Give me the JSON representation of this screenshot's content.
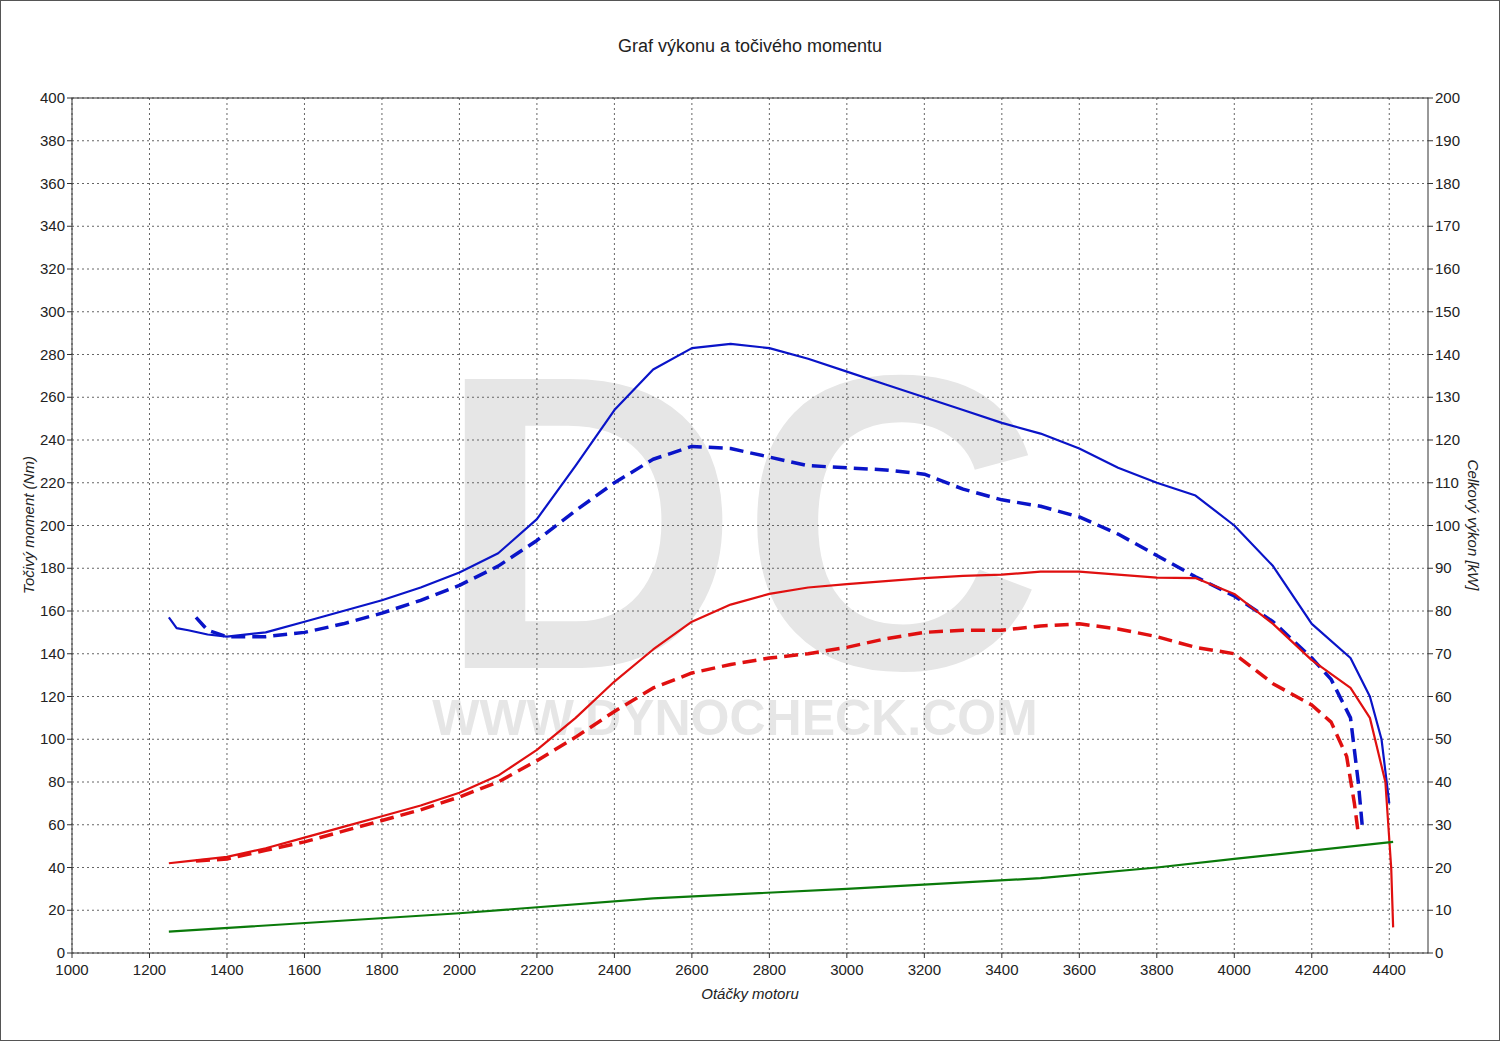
{
  "chart_data": {
    "type": "line",
    "title": "Graf výkonu a točivého momentu",
    "x_label": "Otáčky motoru",
    "y_label": "Točivý moment (Nm)",
    "y2_label": "Celkový výkon [kW]",
    "watermark": [
      "DC",
      "WWW.DYNOCHECK.COM"
    ],
    "grid": true,
    "xlim": [
      1000,
      4500
    ],
    "xticks": [
      1000,
      1200,
      1400,
      1600,
      1800,
      2000,
      2200,
      2400,
      2600,
      2800,
      3000,
      3200,
      3400,
      3600,
      3800,
      4000,
      4200,
      4400
    ],
    "ylim": [
      0,
      400
    ],
    "yticks": [
      0,
      20,
      40,
      60,
      80,
      100,
      120,
      140,
      160,
      180,
      200,
      220,
      240,
      260,
      280,
      300,
      320,
      340,
      360,
      380,
      400
    ],
    "y2lim": [
      0,
      200
    ],
    "y2ticks": [
      0,
      10,
      20,
      30,
      40,
      50,
      60,
      70,
      80,
      90,
      100,
      110,
      120,
      130,
      140,
      150,
      160,
      170,
      180,
      190,
      200
    ],
    "series": [
      {
        "color": "#0a14c8",
        "line_style": "solid",
        "axis": "y",
        "x": [
          1250,
          1270,
          1300,
          1350,
          1400,
          1500,
          1600,
          1700,
          1800,
          1900,
          2000,
          2100,
          2200,
          2300,
          2400,
          2500,
          2600,
          2700,
          2800,
          2900,
          3000,
          3100,
          3200,
          3300,
          3400,
          3500,
          3600,
          3700,
          3800,
          3900,
          4000,
          4100,
          4200,
          4300,
          4350,
          4380,
          4400
        ],
        "values": [
          157,
          152,
          151,
          149,
          148,
          150,
          155,
          160,
          165,
          171,
          178,
          187,
          203,
          228,
          254,
          273,
          283,
          285,
          283,
          278,
          272,
          266,
          260,
          254,
          248,
          243,
          236,
          227,
          220,
          214,
          200,
          181,
          154,
          138,
          120,
          100,
          70
        ]
      },
      {
        "color": "#0a14c8",
        "line_style": "dashed",
        "axis": "y",
        "x": [
          1320,
          1350,
          1400,
          1500,
          1600,
          1700,
          1800,
          1900,
          2000,
          2100,
          2200,
          2300,
          2400,
          2500,
          2600,
          2700,
          2800,
          2900,
          3000,
          3100,
          3200,
          3300,
          3400,
          3500,
          3600,
          3700,
          3800,
          3900,
          4000,
          4100,
          4200,
          4250,
          4300,
          4320,
          4330
        ],
        "values": [
          157,
          151,
          148,
          148,
          150,
          154,
          159,
          165,
          172,
          181,
          193,
          207,
          220,
          231,
          237,
          236,
          232,
          228,
          227,
          226,
          224,
          217,
          212,
          209,
          204,
          196,
          186,
          176,
          167,
          155,
          138,
          128,
          110,
          80,
          60
        ]
      },
      {
        "color": "#e01010",
        "line_style": "solid",
        "axis": "y2",
        "x": [
          1250,
          1300,
          1400,
          1500,
          1600,
          1700,
          1800,
          1900,
          2000,
          2100,
          2200,
          2300,
          2400,
          2500,
          2600,
          2700,
          2800,
          2900,
          3000,
          3100,
          3200,
          3300,
          3400,
          3500,
          3600,
          3700,
          3800,
          3900,
          4000,
          4100,
          4200,
          4300,
          4350,
          4390,
          4405,
          4410
        ],
        "values": [
          21,
          21.5,
          22.5,
          24.5,
          27,
          29.5,
          32,
          34.5,
          37.5,
          41.5,
          47.5,
          55,
          63.5,
          71,
          77.5,
          81.5,
          84,
          85.5,
          86.3,
          87,
          87.7,
          88.2,
          88.5,
          89.2,
          89.2,
          88.5,
          87.8,
          87.7,
          84,
          77,
          68.5,
          62,
          55,
          40,
          20,
          6
        ]
      },
      {
        "color": "#e01010",
        "line_style": "dashed",
        "axis": "y2",
        "x": [
          1320,
          1400,
          1500,
          1600,
          1700,
          1800,
          1900,
          2000,
          2100,
          2200,
          2300,
          2400,
          2500,
          2600,
          2700,
          2800,
          2900,
          3000,
          3100,
          3200,
          3300,
          3400,
          3500,
          3600,
          3700,
          3800,
          3900,
          4000,
          4100,
          4200,
          4250,
          4290,
          4310,
          4320
        ],
        "values": [
          21.5,
          22,
          24,
          26,
          28.5,
          31,
          33.5,
          36.5,
          40,
          45,
          50.5,
          56.5,
          62,
          65.5,
          67.5,
          69,
          70,
          71.5,
          73.5,
          75,
          75.5,
          75.5,
          76.5,
          77,
          75.8,
          74,
          71.5,
          70,
          63,
          58,
          54,
          46,
          35,
          28
        ]
      },
      {
        "color": "#0a7a0a",
        "line_style": "solid",
        "axis": "y2",
        "x": [
          1250,
          2000,
          2500,
          3000,
          3500,
          3800,
          4000,
          4410
        ],
        "values": [
          5,
          9.3,
          12.8,
          15,
          17.5,
          20,
          22,
          26
        ]
      }
    ]
  }
}
